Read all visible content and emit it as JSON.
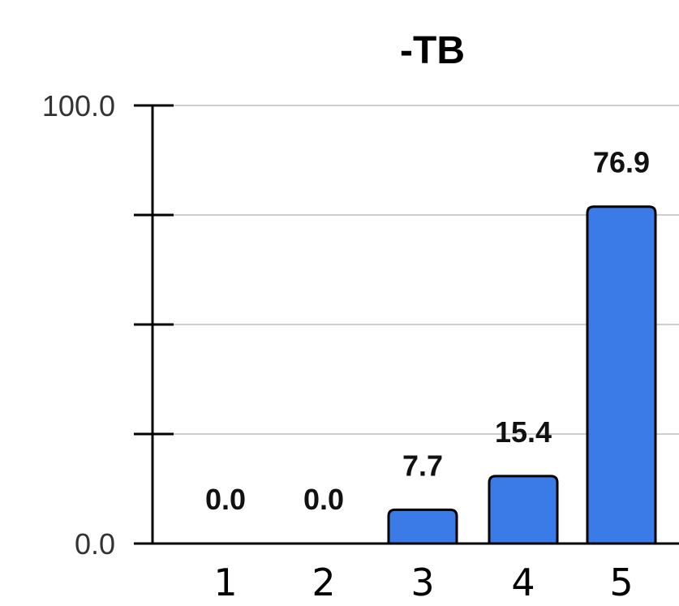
{
  "chart_data": {
    "type": "bar",
    "title": "-TB",
    "categories": [
      "1",
      "2",
      "3",
      "4",
      "5"
    ],
    "values": [
      0.0,
      0.0,
      7.7,
      15.4,
      76.9
    ],
    "data_labels": [
      "0.0",
      "0.0",
      "7.7",
      "15.4",
      "76.9"
    ],
    "ylim": [
      0,
      100
    ],
    "yticks": [
      0,
      25,
      50,
      75,
      100
    ],
    "ytick_labels": [
      "0.0",
      "",
      "",
      "",
      "100.0"
    ],
    "grid": true,
    "bar_color": "#3b7be8"
  }
}
